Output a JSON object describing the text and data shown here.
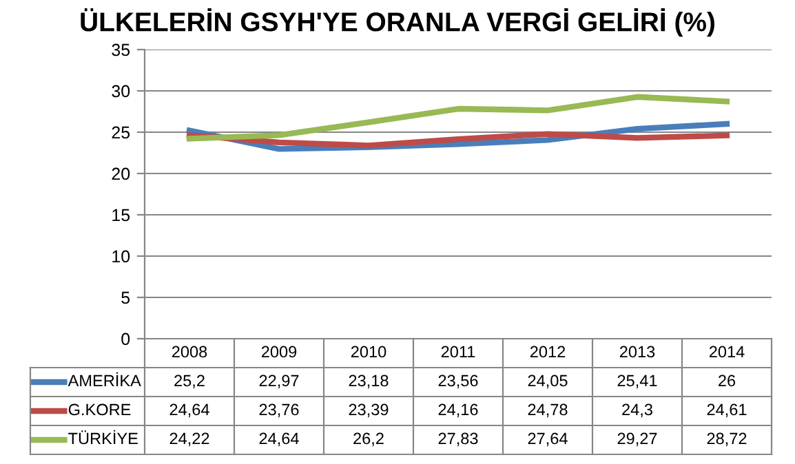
{
  "chart_data": {
    "type": "line",
    "title": "ÜLKELERİN GSYH'YE ORANLA VERGİ GELİRİ (%)",
    "categories": [
      "2008",
      "2009",
      "2010",
      "2011",
      "2012",
      "2013",
      "2014"
    ],
    "series": [
      {
        "name": "AMERİKA",
        "color": "#4a7ebb",
        "values": [
          25.2,
          22.97,
          23.18,
          23.56,
          24.05,
          25.41,
          26
        ],
        "value_labels": [
          "25,2",
          "22,97",
          "23,18",
          "23,56",
          "24,05",
          "25,41",
          "26"
        ]
      },
      {
        "name": "G.KORE",
        "color": "#be4b48",
        "values": [
          24.64,
          23.76,
          23.39,
          24.16,
          24.78,
          24.3,
          24.61
        ],
        "value_labels": [
          "24,64",
          "23,76",
          "23,39",
          "24,16",
          "24,78",
          "24,3",
          "24,61"
        ]
      },
      {
        "name": "TÜRKİYE",
        "color": "#98b954",
        "values": [
          24.22,
          24.64,
          26.2,
          27.83,
          27.64,
          29.27,
          28.72
        ],
        "value_labels": [
          "24,22",
          "24,64",
          "26,2",
          "27,83",
          "27,64",
          "29,27",
          "28,72"
        ]
      }
    ],
    "ylim": [
      0,
      35
    ],
    "yticks": [
      0,
      5,
      10,
      15,
      20,
      25,
      30,
      35
    ],
    "grid": "y",
    "legend": "bottom",
    "marker": "none",
    "line_style": "solid"
  }
}
